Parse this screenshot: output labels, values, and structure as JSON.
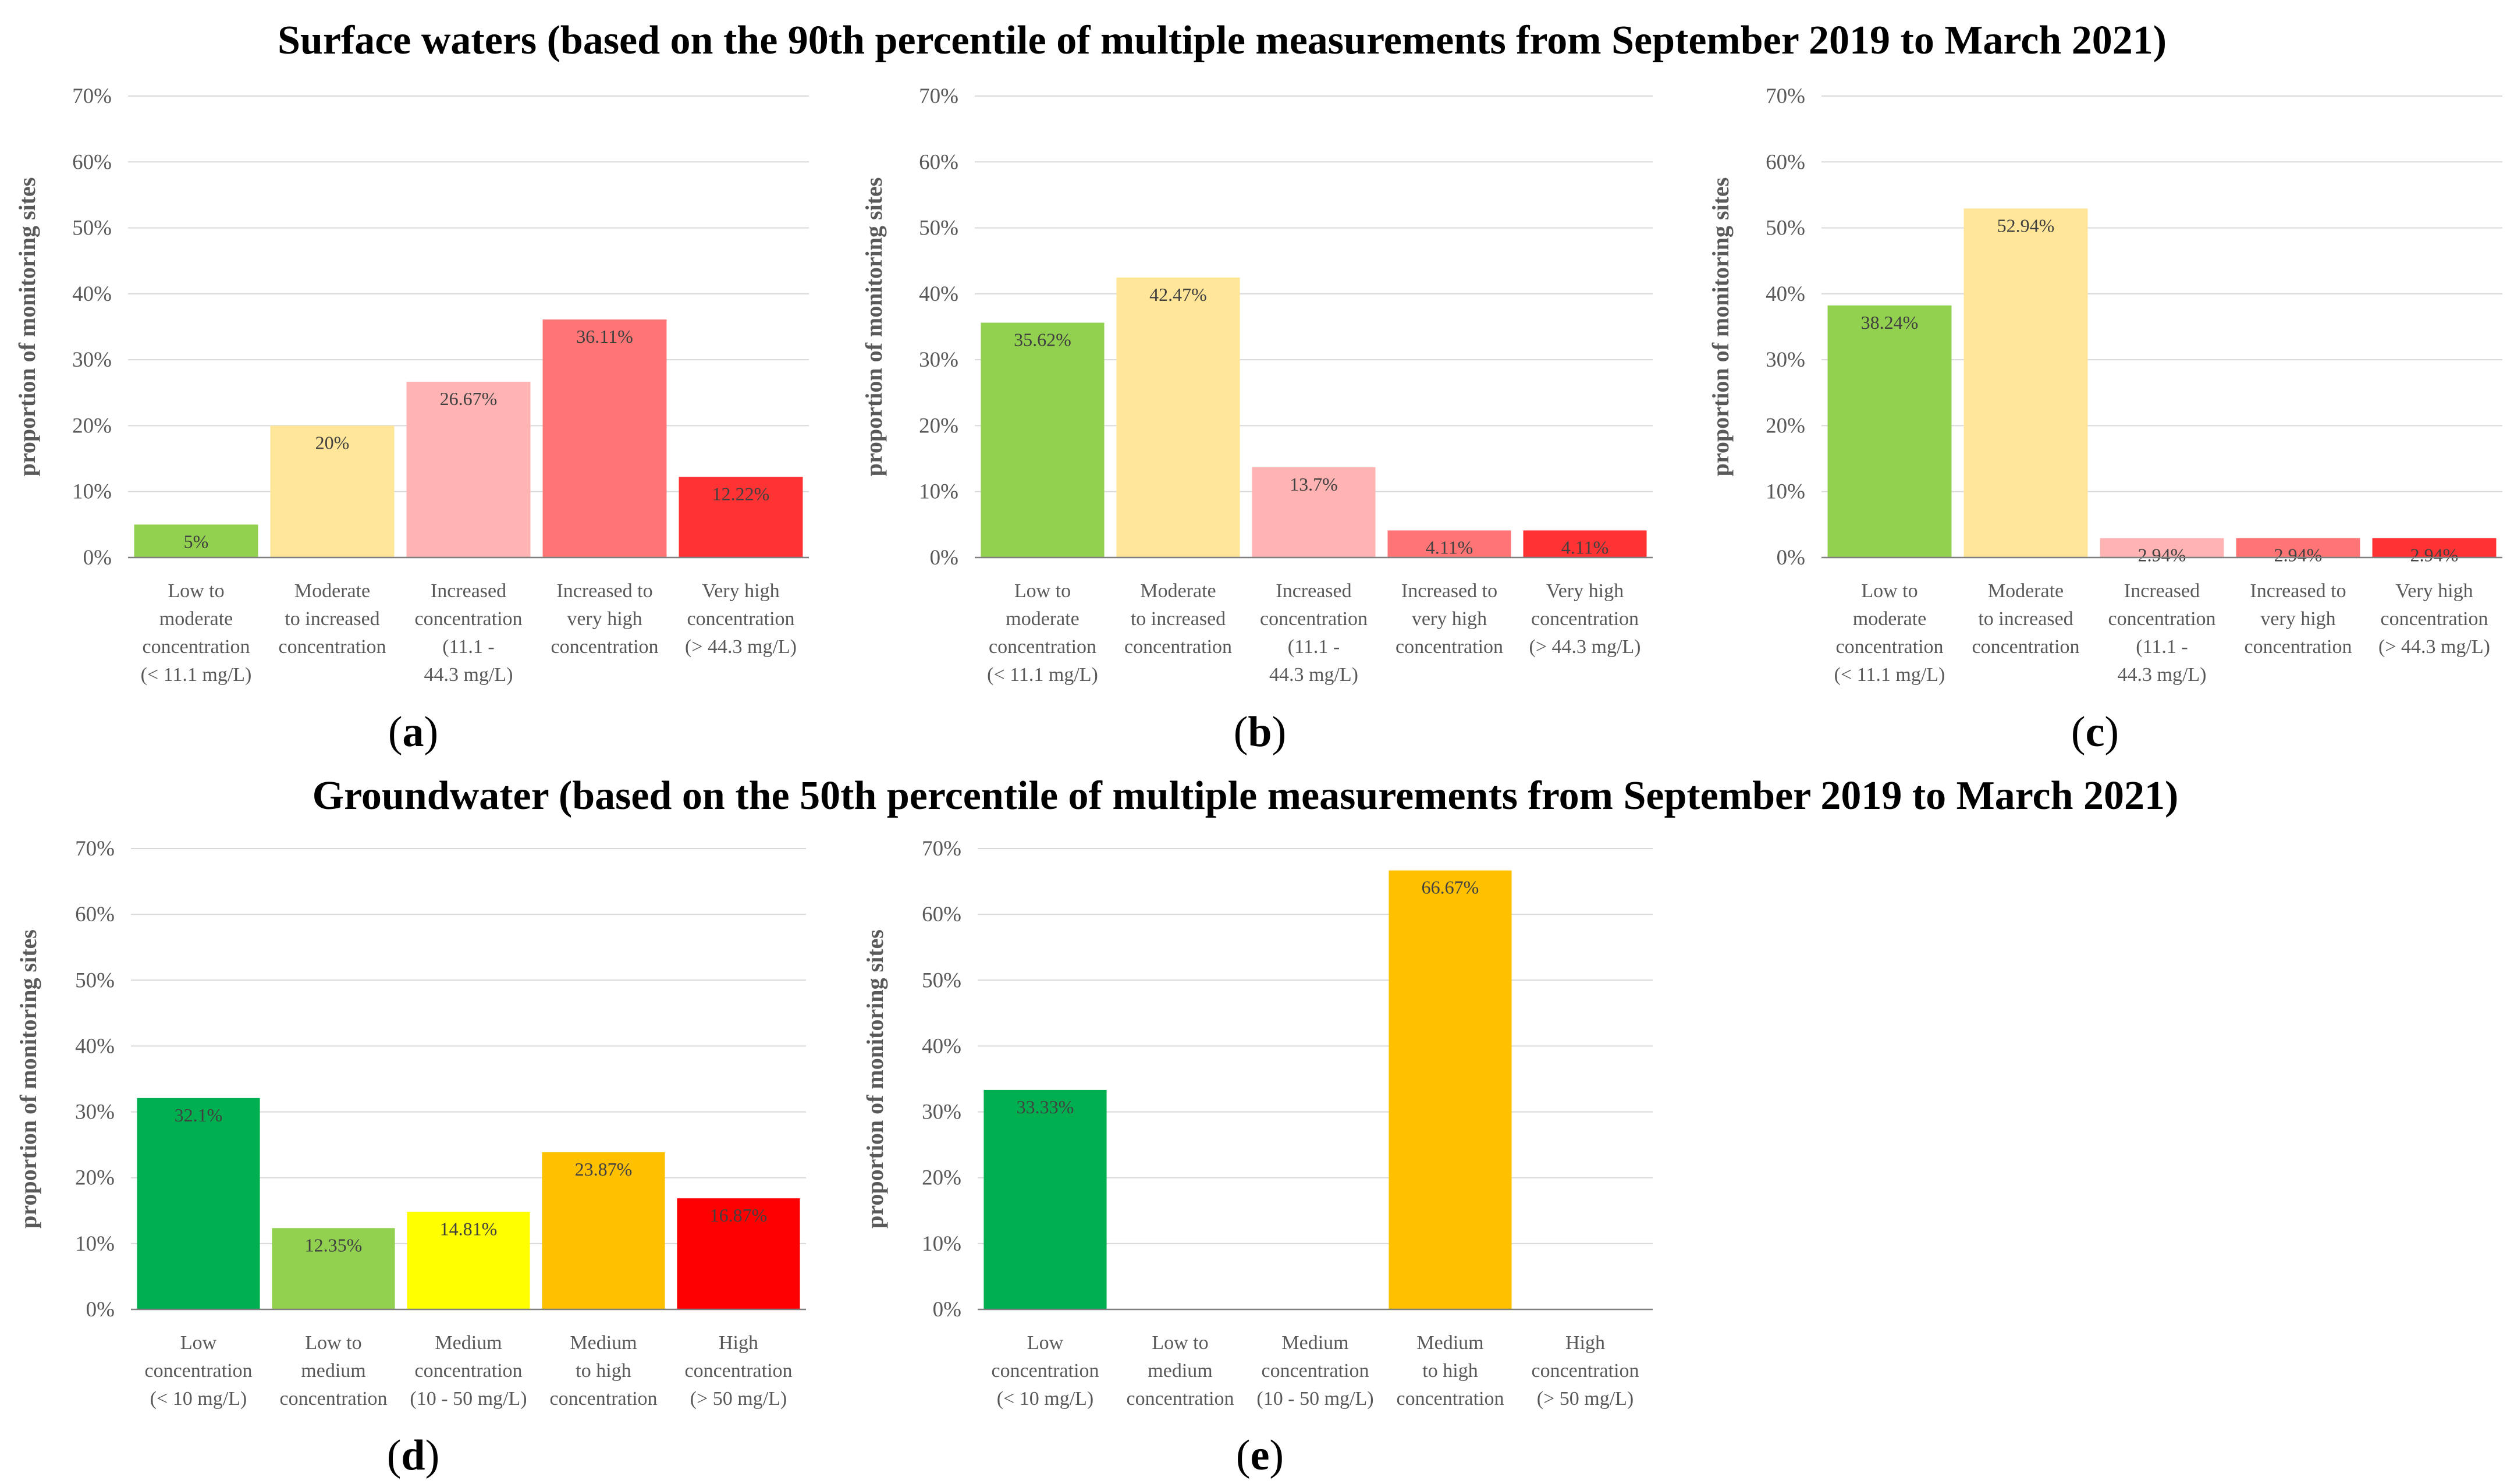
{
  "titles": {
    "surface": "Surface waters (based on the 90th percentile of multiple measurements from September 2019 to March 2021)",
    "groundwater": "Groundwater (based on the 50th percentile of multiple measurements from September 2019 to March 2021)"
  },
  "chart_data": [
    {
      "id": "a",
      "type": "bar",
      "panel_label": "a",
      "ylabel": "proportion of monitoring sites",
      "ylim": [
        0,
        70
      ],
      "yticks": [
        "0%",
        "10%",
        "20%",
        "30%",
        "40%",
        "50%",
        "60%",
        "70%"
      ],
      "categories": [
        [
          "Low to",
          "moderate",
          "concentration",
          "(< 11.1 mg/L)"
        ],
        [
          "Moderate",
          "to increased",
          "concentration"
        ],
        [
          "Increased",
          "concentration",
          "(11.1 -",
          "44.3 mg/L)"
        ],
        [
          "Increased to",
          "very high",
          "concentration"
        ],
        [
          "Very high",
          "concentration",
          "(> 44.3 mg/L)"
        ]
      ],
      "values": [
        5,
        20,
        26.67,
        36.11,
        12.22
      ],
      "data_labels": [
        "5%",
        "20%",
        "26.67%",
        "36.11%",
        "12.22%"
      ],
      "colors": [
        "#92d050",
        "#ffe699",
        "#ffb3b3",
        "#ff7575",
        "#ff3333"
      ]
    },
    {
      "id": "b",
      "type": "bar",
      "panel_label": "b",
      "ylabel": "proportion of monitoring sites",
      "ylim": [
        0,
        70
      ],
      "yticks": [
        "0%",
        "10%",
        "20%",
        "30%",
        "40%",
        "50%",
        "60%",
        "70%"
      ],
      "categories": [
        [
          "Low to",
          "moderate",
          "concentration",
          "(< 11.1 mg/L)"
        ],
        [
          "Moderate",
          "to increased",
          "concentration"
        ],
        [
          "Increased",
          "concentration",
          "(11.1 -",
          "44.3 mg/L)"
        ],
        [
          "Increased to",
          "very high",
          "concentration"
        ],
        [
          "Very high",
          "concentration",
          "(> 44.3 mg/L)"
        ]
      ],
      "values": [
        35.62,
        42.47,
        13.7,
        4.11,
        4.11
      ],
      "data_labels": [
        "35.62%",
        "42.47%",
        "13.7%",
        "4.11%",
        "4.11%"
      ],
      "colors": [
        "#92d050",
        "#ffe699",
        "#ffb3b3",
        "#ff7575",
        "#ff3333"
      ]
    },
    {
      "id": "c",
      "type": "bar",
      "panel_label": "c",
      "ylabel": "proportion of monitoring sites",
      "ylim": [
        0,
        70
      ],
      "yticks": [
        "0%",
        "10%",
        "20%",
        "30%",
        "40%",
        "50%",
        "60%",
        "70%"
      ],
      "categories": [
        [
          "Low to",
          "moderate",
          "concentration",
          "(< 11.1 mg/L)"
        ],
        [
          "Moderate",
          "to increased",
          "concentration"
        ],
        [
          "Increased",
          "concentration",
          "(11.1 -",
          "44.3 mg/L)"
        ],
        [
          "Increased to",
          "very high",
          "concentration"
        ],
        [
          "Very high",
          "concentration",
          "(> 44.3 mg/L)"
        ]
      ],
      "values": [
        38.24,
        52.94,
        2.94,
        2.94,
        2.94
      ],
      "data_labels": [
        "38.24%",
        "52.94%",
        "2.94%",
        "2.94%",
        "2.94%"
      ],
      "colors": [
        "#92d050",
        "#ffe699",
        "#ffb3b3",
        "#ff7575",
        "#ff3333"
      ]
    },
    {
      "id": "d",
      "type": "bar",
      "panel_label": "d",
      "ylabel": "proportion of monitoring sites",
      "ylim": [
        0,
        70
      ],
      "yticks": [
        "0%",
        "10%",
        "20%",
        "30%",
        "40%",
        "50%",
        "60%",
        "70%"
      ],
      "categories": [
        [
          "Low",
          "concentration",
          "(< 10 mg/L)"
        ],
        [
          "Low to",
          "medium",
          "concentration"
        ],
        [
          "Medium",
          "concentration",
          "(10 - 50 mg/L)"
        ],
        [
          "Medium",
          "to high",
          "concentration"
        ],
        [
          "High",
          "concentration",
          "(> 50 mg/L)"
        ]
      ],
      "values": [
        32.1,
        12.35,
        14.81,
        23.87,
        16.87
      ],
      "data_labels": [
        "32.1%",
        "12.35%",
        "14.81%",
        "23.87%",
        "16.87%"
      ],
      "colors": [
        "#00b050",
        "#92d050",
        "#ffff00",
        "#ffc000",
        "#ff0000"
      ]
    },
    {
      "id": "e",
      "type": "bar",
      "panel_label": "e",
      "ylabel": "proportion of monitoring sites",
      "ylim": [
        0,
        70
      ],
      "yticks": [
        "0%",
        "10%",
        "20%",
        "30%",
        "40%",
        "50%",
        "60%",
        "70%"
      ],
      "categories": [
        [
          "Low",
          "concentration",
          "(< 10 mg/L)"
        ],
        [
          "Low to",
          "medium",
          "concentration"
        ],
        [
          "Medium",
          "concentration",
          "(10 - 50 mg/L)"
        ],
        [
          "Medium",
          "to high",
          "concentration"
        ],
        [
          "High",
          "concentration",
          "(> 50 mg/L)"
        ]
      ],
      "values": [
        33.33,
        0,
        0,
        66.67,
        0
      ],
      "data_labels": [
        "33.33%",
        "",
        "",
        "66.67%",
        ""
      ],
      "colors": [
        "#00b050",
        "#92d050",
        "#ffff00",
        "#ffc000",
        "#ff0000"
      ]
    }
  ]
}
